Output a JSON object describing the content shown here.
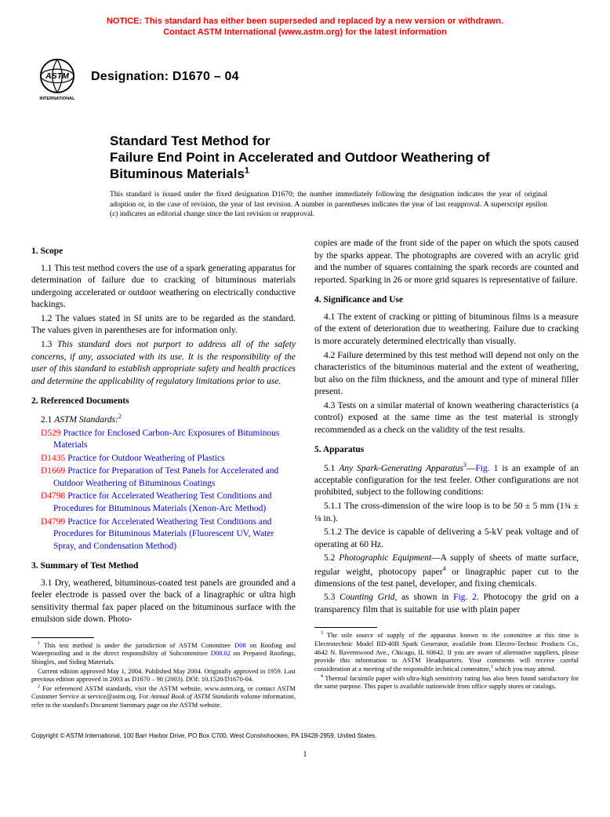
{
  "notice": {
    "line1": "NOTICE: This standard has either been superseded and replaced by a new version or withdrawn.",
    "line2": "Contact ASTM International (www.astm.org) for the latest information"
  },
  "logo": {
    "top_text": "ASTM",
    "bottom_text": "INTERNATIONAL"
  },
  "designation": "Designation: D1670 – 04",
  "title": {
    "line1": "Standard Test Method for",
    "line2": "Failure End Point in Accelerated and Outdoor Weathering of Bituminous Materials",
    "sup": "1"
  },
  "issued": "This standard is issued under the fixed designation D1670; the number immediately following the designation indicates the year of original adoption or, in the case of revision, the year of last revision. A number in parentheses indicates the year of last reapproval. A superscript epsilon (ε) indicates an editorial change since the last revision or reapproval.",
  "left": {
    "s1_head": "1. Scope",
    "s1_1": "1.1 This test method covers the use of a spark generating apparatus for determination of failure due to cracking of bituminous materials undergoing accelerated or outdoor weathering on electrically conductive backings.",
    "s1_2": "1.2 The values stated in SI units are to be regarded as the standard. The values given in parentheses are for information only.",
    "s1_3a": "1.3 ",
    "s1_3b": "This standard does not purport to address all of the safety concerns, if any, associated with its use. It is the responsibility of the user of this standard to establish appropriate safety and health practices and determine the applicability of regulatory limitations prior to use.",
    "s2_head": "2. Referenced Documents",
    "s2_1a": "2.1 ",
    "s2_1b": "ASTM Standards:",
    "s2_1sup": "2",
    "refs": [
      {
        "code": "D529",
        "text": " Practice for Enclosed Carbon-Arc Exposures of Bituminous Materials"
      },
      {
        "code": "D1435",
        "text": " Practice for Outdoor Weathering of Plastics"
      },
      {
        "code": "D1669",
        "text": " Practice for Preparation of Test Panels for Accelerated and Outdoor Weathering of Bituminous Coatings"
      },
      {
        "code": "D4798",
        "text": " Practice for Accelerated Weathering Test Conditions and Procedures for Bituminous Materials (Xenon-Arc Method)"
      },
      {
        "code": "D4799",
        "text": " Practice for Accelerated Weathering Test Conditions and Procedures for Bituminous Materials (Fluorescent UV, Water Spray, and Condensation Method)"
      }
    ],
    "s3_head": "3. Summary of Test Method",
    "s3_1": "3.1 Dry, weathered, bituminous-coated test panels are grounded and a feeler electrode is passed over the back of a linagraphic or ultra high sensitivity thermal fax paper placed on the bituminous surface with the emulsion side down. Photo-",
    "fn1a": "1",
    "fn1b": " This test method is under the jurisdiction of ASTM Committee ",
    "fn1c": "D08",
    "fn1d": " on Roofing and Waterproofing and is the direct responsibility of Subcommittee ",
    "fn1e": "D08.02",
    "fn1f": " on Prepared Roofings, Shingles, and Siding Materials.",
    "fn1g": "Current edition approved May 1, 2004. Published May 2004. Originally approved in 1959. Last previous edition approved in 2003 as D1670 – 98 (2003). DOI: 10.1520/D1670-04.",
    "fn2a": "2",
    "fn2b": " For referenced ASTM standards, visit the ASTM website, www.astm.org, or contact ASTM Customer Service at service@astm.org. For ",
    "fn2c": "Annual Book of ASTM Standards",
    "fn2d": " volume information, refer to the standard's Document Summary page on the ASTM website."
  },
  "right": {
    "cont": "copies are made of the front side of the paper on which the spots caused by the sparks appear. The photographs are covered with an acrylic grid and the number of squares containing the spark records are counted and reported. Sparking in 26 or more grid squares is representative of failure.",
    "s4_head": "4. Significance and Use",
    "s4_1": "4.1 The extent of cracking or pitting of bituminous films is a measure of the extent of deterioration due to weathering. Failure due to cracking is more accurately determined electrically than visually.",
    "s4_2": "4.2 Failure determined by this test method will depend not only on the characteristics of the bituminous material and the extent of weathering, but also on the film thickness, and the amount and type of mineral filler present.",
    "s4_3": "4.3 Tests on a similar material of known weathering characteristics (a control) exposed at the same time as the test material is strongly recommended as a check on the validity of the test results.",
    "s5_head": "5. Apparatus",
    "s5_1a": "5.1 ",
    "s5_1b": "Any Spark-Generating Apparatus",
    "s5_1sup": "3",
    "s5_1c": "—",
    "s5_1d": "Fig. 1",
    "s5_1e": " is an example of an acceptable configuration for the test feeler. Other configurations are not prohibited, subject to the following conditions:",
    "s5_1_1": "5.1.1 The cross-dimension of the wire loop is to be 50 ± 5 mm (1¾ ± ⅛ in.).",
    "s5_1_2": "5.1.2 The device is capable of delivering a 5-kV peak voltage and of operating at 60 Hz.",
    "s5_2a": "5.2 ",
    "s5_2b": "Photographic Equipment",
    "s5_2c": "—A supply of sheets of matte surface, regular weight, photocopy paper",
    "s5_2sup": "4",
    "s5_2d": " or linagraphic paper cut to the dimensions of the test panel, developer, and fixing chemicals.",
    "s5_3a": "5.3 ",
    "s5_3b": "Counting Grid",
    "s5_3c": ", as shown in ",
    "s5_3d": "Fig. 2",
    "s5_3e": ". Photocopy the grid on a transparency film that is suitable for use with plain paper",
    "fn3a": "3",
    "fn3b": " The sole source of supply of the apparatus known to the committee at this time is Electrotechnic Model BD-40B Spark Generator, available from Electro-Technic Products Co., 4642 N. Ravenswood Ave., Chicago, IL 60642. If you are aware of alternative suppliers, please provide this information to ASTM Headquarters. Your comments will receive careful consideration at a meeting of the responsible technical committee,",
    "fn3sup": "1",
    "fn3c": " which you may attend.",
    "fn4a": "4",
    "fn4b": " Thermal facsimile paper with ultra-high sensitivity rating has also been found satisfactory for the same purpose. This paper is available nationwide from office supply stores or catalogs."
  },
  "copyright": "Copyright © ASTM International, 100 Barr Harbor Drive, PO Box C700, West Conshohocken, PA 19428-2959, United States.",
  "page_num": "1",
  "colors": {
    "notice": "#ff0000",
    "link": "#0000cc",
    "refcode": "#ff0000",
    "text": "#000000"
  }
}
